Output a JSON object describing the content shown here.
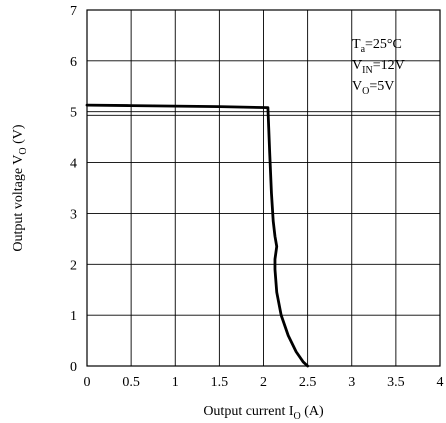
{
  "chart_data": {
    "type": "line",
    "xlabel": {
      "main": "Output current I",
      "sub": "O",
      "unit": " (A)"
    },
    "ylabel": {
      "main": "Output voltage V",
      "sub": "O",
      "unit": " (V)"
    },
    "xlim": [
      0,
      4
    ],
    "ylim": [
      0,
      7
    ],
    "x_ticks": [
      "0",
      "0.5",
      "1",
      "1.5",
      "2",
      "2.5",
      "3",
      "3.5",
      "4"
    ],
    "y_ticks": [
      "0",
      "1",
      "2",
      "3",
      "4",
      "5",
      "6",
      "7"
    ],
    "grid": true,
    "annotations": [
      {
        "main": "T",
        "sub": "a",
        "rest": "=25°C"
      },
      {
        "main": "V",
        "sub": "IN",
        "rest": "=12V"
      },
      {
        "main": "V",
        "sub": "O",
        "rest": "=5V"
      }
    ],
    "series": [
      {
        "x": [
          0.0,
          0.5,
          1.0,
          1.5,
          2.05,
          2.07,
          2.09,
          2.11,
          2.13,
          2.15,
          2.13,
          2.13,
          2.15,
          2.2,
          2.28,
          2.37,
          2.45,
          2.5
        ],
        "y": [
          5.13,
          5.12,
          5.11,
          5.1,
          5.08,
          4.2,
          3.4,
          2.85,
          2.55,
          2.35,
          2.1,
          1.9,
          1.45,
          1.0,
          0.6,
          0.28,
          0.08,
          0.0
        ]
      }
    ],
    "color": "#000000"
  }
}
